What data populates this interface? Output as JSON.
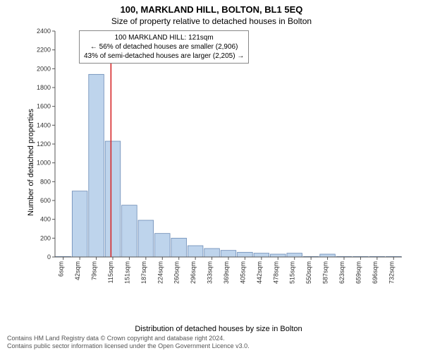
{
  "title_main": "100, MARKLAND HILL, BOLTON, BL1 5EQ",
  "title_sub": "Size of property relative to detached houses in Bolton",
  "ylabel": "Number of detached properties",
  "xlabel": "Distribution of detached houses by size in Bolton",
  "ylim": [
    0,
    2400
  ],
  "ytick_step": 200,
  "chart": {
    "type": "histogram",
    "bar_fill": "#bed4ec",
    "bar_stroke": "#6a8ab5",
    "marker_line_color": "#d62728",
    "marker_value": 121,
    "x_range": [
      0,
      750
    ],
    "categories": [
      "6sqm",
      "42sqm",
      "79sqm",
      "115sqm",
      "151sqm",
      "187sqm",
      "224sqm",
      "260sqm",
      "296sqm",
      "333sqm",
      "369sqm",
      "405sqm",
      "442sqm",
      "478sqm",
      "515sqm",
      "550sqm",
      "587sqm",
      "623sqm",
      "659sqm",
      "696sqm",
      "732sqm"
    ],
    "values": [
      5,
      700,
      1940,
      1230,
      550,
      390,
      250,
      200,
      120,
      90,
      70,
      50,
      40,
      30,
      40,
      5,
      30,
      5,
      5,
      5,
      5
    ]
  },
  "annotation": {
    "line1": "100 MARKLAND HILL: 121sqm",
    "line2": "← 56% of detached houses are smaller (2,906)",
    "line3": "43% of semi-detached houses are larger (2,205) →"
  },
  "footer": {
    "line1": "Contains HM Land Registry data © Crown copyright and database right 2024.",
    "line2": "Contains public sector information licensed under the Open Government Licence v3.0."
  },
  "colors": {
    "axis": "#555555",
    "grid": "#e0e0e0",
    "text": "#333333"
  },
  "fontsize": {
    "title": 13,
    "subtitle": 12,
    "axis_label": 11,
    "tick": 9,
    "annotation": 10,
    "footer": 9
  }
}
